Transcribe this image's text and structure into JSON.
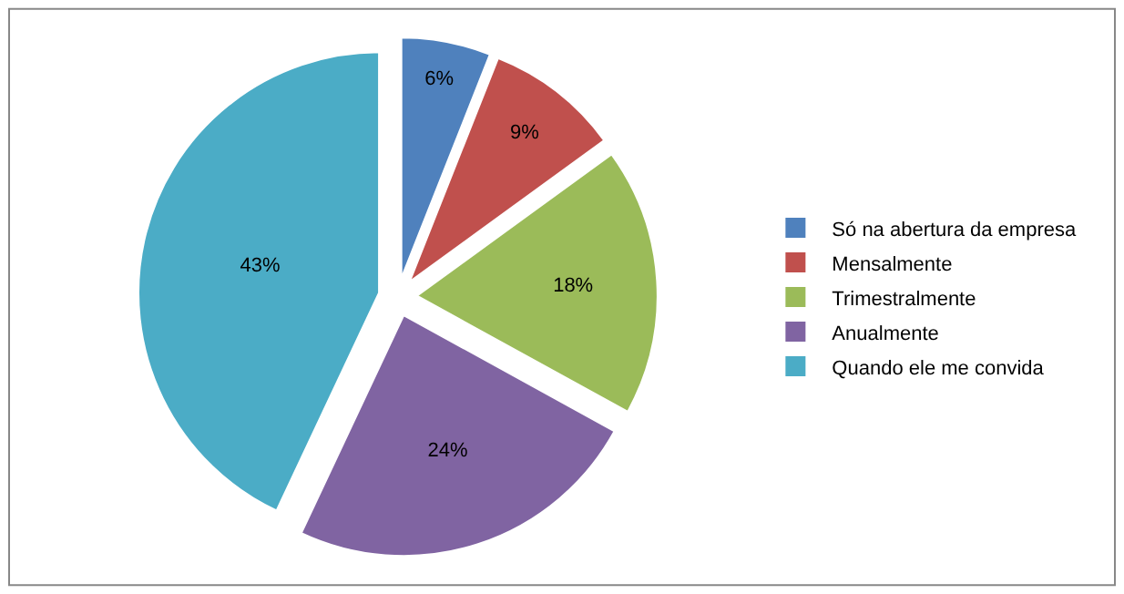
{
  "chart_data": {
    "type": "pie",
    "categories": [
      "Só na abertura da empresa",
      "Mensalmente",
      "Trimestralmente",
      "Anualmente",
      "Quando ele me convida"
    ],
    "values": [
      6,
      9,
      18,
      24,
      43
    ],
    "colors": [
      "#4f81bd",
      "#c0504d",
      "#9bbb59",
      "#8064a2",
      "#4bacc6"
    ],
    "value_labels": [
      "6%",
      "9%",
      "18%",
      "24%",
      "43%"
    ],
    "legend": "right"
  }
}
